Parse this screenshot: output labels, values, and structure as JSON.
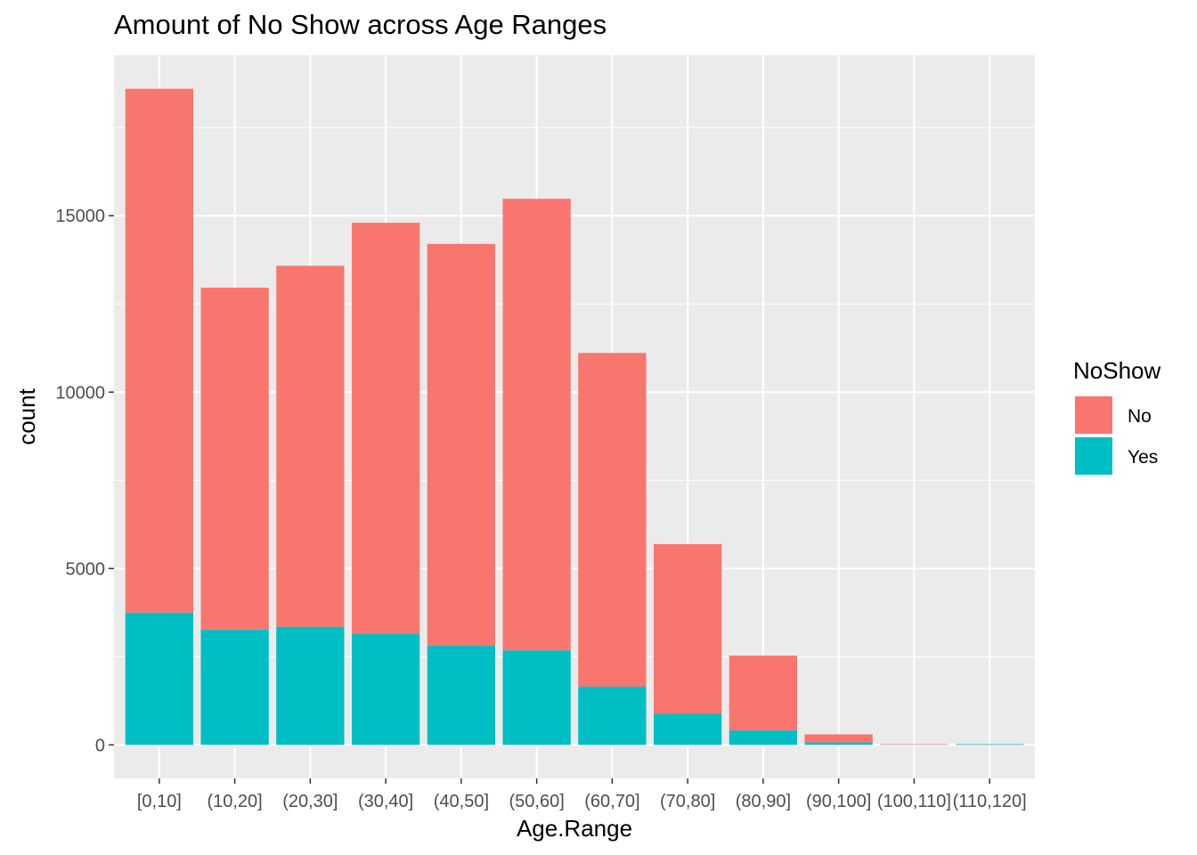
{
  "chart_data": {
    "type": "bar",
    "stacked": true,
    "title": "Amount of No Show across Age Ranges",
    "xlabel": "Age.Range",
    "ylabel": "count",
    "categories": [
      "[0,10]",
      "(10,20]",
      "(20,30]",
      "(30,40]",
      "(40,50]",
      "(50,60]",
      "(60,70]",
      "(70,80]",
      "(80,90]",
      "(90,100]",
      "(100,110]",
      "(110,120]"
    ],
    "series": [
      {
        "name": "No",
        "color": "#F8766D",
        "values": [
          14850,
          9690,
          10230,
          11650,
          11380,
          12800,
          9460,
          4810,
          2120,
          230,
          15,
          5
        ]
      },
      {
        "name": "Yes",
        "color": "#00BFC4",
        "values": [
          3750,
          3270,
          3350,
          3150,
          2820,
          2680,
          1650,
          880,
          410,
          70,
          5,
          20
        ]
      }
    ],
    "yticks": [
      0,
      5000,
      10000,
      15000
    ],
    "ylim": [
      -950,
      19550
    ],
    "grid": true,
    "legend": {
      "title": "NoShow",
      "position": "right"
    }
  }
}
